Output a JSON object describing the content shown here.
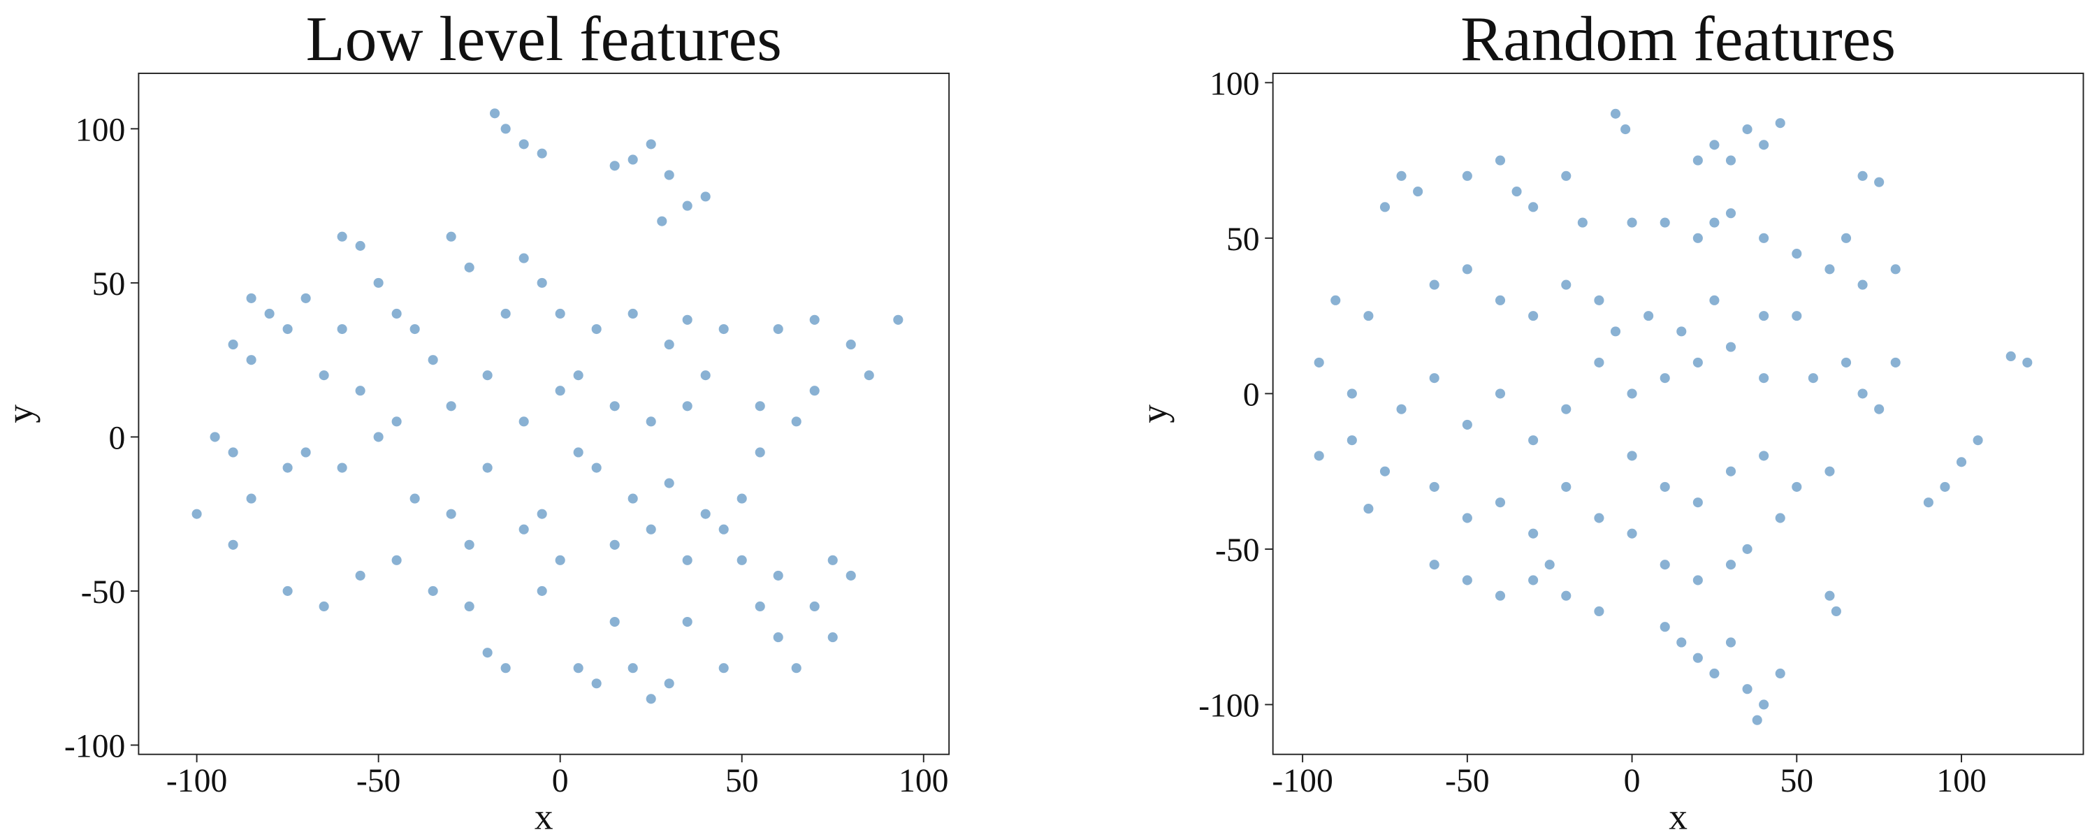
{
  "chart_data": [
    {
      "type": "scatter",
      "title": "Low level features",
      "xlabel": "x",
      "ylabel": "y",
      "xlim": [
        -116,
        107
      ],
      "ylim": [
        -103,
        118
      ],
      "xticks": [
        -100,
        -50,
        0,
        50,
        100
      ],
      "yticks": [
        -100,
        -50,
        0,
        50,
        100
      ],
      "color": "#3a7db5",
      "x": [
        -15,
        -18,
        -10,
        -5,
        20,
        30,
        35,
        28,
        40,
        15,
        25,
        -60,
        -55,
        -30,
        -25,
        -10,
        -5,
        -85,
        -80,
        -90,
        -75,
        -85,
        -45,
        -40,
        -65,
        -55,
        -35,
        0,
        10,
        20,
        35,
        45,
        60,
        70,
        80,
        85,
        93,
        -95,
        -90,
        -100,
        -85,
        -75,
        -70,
        -60,
        -50,
        -45,
        -40,
        -30,
        -20,
        -10,
        0,
        5,
        15,
        25,
        35,
        55,
        65,
        70,
        10,
        20,
        30,
        40,
        45,
        25,
        15,
        35,
        50,
        55,
        -90,
        -75,
        -65,
        -55,
        -45,
        -35,
        -25,
        -20,
        -15,
        -5,
        5,
        10,
        20,
        30,
        25,
        15,
        35,
        45,
        55,
        60,
        65,
        70,
        75,
        80,
        75,
        60,
        -20,
        -30,
        -25,
        5,
        -5,
        40,
        50,
        0,
        -10,
        30,
        -60,
        -50,
        -15,
        -70
      ],
      "values": [
        100,
        105,
        95,
        92,
        90,
        85,
        75,
        70,
        78,
        88,
        95,
        65,
        62,
        65,
        55,
        58,
        50,
        45,
        40,
        30,
        35,
        25,
        40,
        35,
        20,
        15,
        25,
        40,
        35,
        40,
        38,
        35,
        35,
        38,
        30,
        20,
        38,
        0,
        -5,
        -25,
        -20,
        -10,
        -5,
        -10,
        0,
        5,
        -20,
        -25,
        -10,
        5,
        15,
        20,
        10,
        5,
        10,
        10,
        5,
        15,
        -10,
        -20,
        -15,
        -25,
        -30,
        -30,
        -35,
        -40,
        -20,
        -5,
        -35,
        -50,
        -55,
        -45,
        -40,
        -50,
        -55,
        -70,
        -75,
        -50,
        -75,
        -80,
        -75,
        -80,
        -85,
        -60,
        -60,
        -75,
        -55,
        -65,
        -75,
        -55,
        -65,
        -45,
        -40,
        -45,
        20,
        10,
        -35,
        -5,
        -25,
        20,
        -40,
        -40,
        -30,
        30,
        35,
        50,
        40,
        45
      ]
    },
    {
      "type": "scatter",
      "title": "Random features",
      "xlabel": "x",
      "ylabel": "y",
      "xlim": [
        -109,
        137
      ],
      "ylim": [
        -116,
        103
      ],
      "xticks": [
        -100,
        -50,
        0,
        50,
        100
      ],
      "yticks": [
        -100,
        -50,
        0,
        50,
        100
      ],
      "color": "#3a7db5",
      "x": [
        -5,
        -2,
        -70,
        -65,
        -75,
        -50,
        -40,
        -35,
        -30,
        -20,
        -15,
        20,
        25,
        30,
        35,
        45,
        40,
        70,
        75,
        0,
        10,
        20,
        25,
        30,
        40,
        50,
        65,
        60,
        70,
        80,
        -90,
        -80,
        -60,
        -50,
        -40,
        -30,
        -20,
        -10,
        -5,
        5,
        15,
        25,
        40,
        50,
        -95,
        -85,
        -70,
        -60,
        -50,
        -40,
        -30,
        -20,
        -10,
        0,
        10,
        20,
        30,
        40,
        55,
        65,
        70,
        75,
        80,
        115,
        120,
        105,
        100,
        95,
        90,
        -95,
        -85,
        -75,
        -60,
        -50,
        -40,
        -30,
        -20,
        -10,
        0,
        10,
        20,
        30,
        40,
        50,
        60,
        45,
        35,
        -60,
        -50,
        -40,
        -30,
        -20,
        -25,
        -10,
        0,
        10,
        20,
        30,
        60,
        62,
        10,
        15,
        20,
        30,
        35,
        40,
        38,
        45,
        25,
        -80
      ],
      "values": [
        90,
        85,
        70,
        65,
        60,
        70,
        75,
        65,
        60,
        70,
        55,
        75,
        80,
        75,
        85,
        87,
        80,
        70,
        68,
        55,
        55,
        50,
        55,
        58,
        50,
        45,
        50,
        40,
        35,
        40,
        30,
        25,
        35,
        40,
        30,
        25,
        35,
        30,
        20,
        25,
        20,
        30,
        25,
        25,
        10,
        0,
        -5,
        5,
        -10,
        0,
        -15,
        -5,
        10,
        0,
        5,
        10,
        15,
        5,
        5,
        10,
        0,
        -5,
        10,
        12,
        10,
        -15,
        -22,
        -30,
        -35,
        -20,
        -15,
        -25,
        -30,
        -40,
        -35,
        -45,
        -30,
        -40,
        -20,
        -30,
        -35,
        -25,
        -20,
        -30,
        -25,
        -40,
        -50,
        -55,
        -60,
        -65,
        -60,
        -65,
        -55,
        -70,
        -45,
        -55,
        -60,
        -55,
        -65,
        -70,
        -75,
        -80,
        -85,
        -80,
        -95,
        -100,
        -105,
        -90,
        -90,
        -37
      ]
    }
  ]
}
